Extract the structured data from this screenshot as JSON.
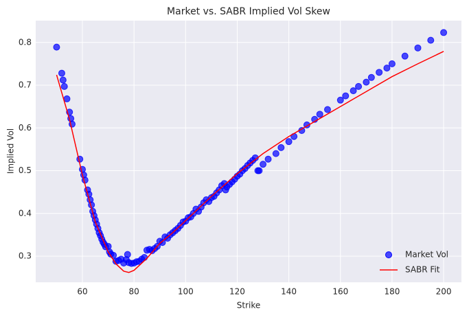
{
  "chart_data": {
    "type": "scatter",
    "title": "Market vs. SABR Implied Vol Skew",
    "x_label": "Strike",
    "y_label": "Implied Vol",
    "xlim": [
      41.9,
      206.9
    ],
    "ylim": [
      0.239,
      0.851
    ],
    "xticks": [
      60,
      80,
      100,
      120,
      140,
      160,
      180,
      200
    ],
    "yticks": [
      0.3,
      0.4,
      0.5,
      0.6,
      0.7,
      0.8
    ],
    "grid": true,
    "legend": "lower right",
    "series": [
      {
        "name": "Market Vol",
        "type": "scatter",
        "color": "#0000ff",
        "x": [
          50,
          52,
          52.5,
          53,
          54,
          55,
          55.5,
          56,
          59,
          60,
          60.5,
          61,
          62,
          62.5,
          63,
          63.5,
          64,
          64.5,
          65,
          65.5,
          66,
          66.5,
          67,
          67.5,
          68,
          68.5,
          69,
          70,
          70.5,
          71,
          72,
          73,
          74,
          75,
          76,
          77,
          77.5,
          78,
          79,
          80,
          81,
          82,
          83,
          84,
          85,
          86,
          87,
          88,
          89,
          90,
          91,
          92,
          93,
          94,
          95,
          96,
          97,
          98,
          99,
          100,
          101,
          102,
          103,
          104,
          105,
          106,
          107,
          108,
          109,
          110,
          111,
          112,
          113,
          114,
          115,
          115.5,
          116,
          117,
          118,
          119,
          120,
          121,
          122,
          123,
          124,
          125,
          126,
          127,
          128,
          128.5,
          130,
          132,
          135,
          137,
          140,
          142,
          145,
          147,
          150,
          152,
          155,
          160,
          162,
          165,
          167,
          170,
          172,
          175,
          178,
          180,
          185,
          190,
          195,
          200
        ],
        "values": [
          0.789,
          0.728,
          0.712,
          0.697,
          0.668,
          0.637,
          0.622,
          0.609,
          0.527,
          0.503,
          0.49,
          0.478,
          0.455,
          0.445,
          0.432,
          0.42,
          0.405,
          0.395,
          0.385,
          0.375,
          0.365,
          0.355,
          0.348,
          0.34,
          0.333,
          0.328,
          0.322,
          0.323,
          0.31,
          0.305,
          0.302,
          0.288,
          0.29,
          0.293,
          0.284,
          0.292,
          0.304,
          0.285,
          0.283,
          0.284,
          0.287,
          0.288,
          0.293,
          0.297,
          0.314,
          0.316,
          0.313,
          0.318,
          0.323,
          0.335,
          0.332,
          0.345,
          0.342,
          0.35,
          0.355,
          0.36,
          0.365,
          0.372,
          0.38,
          0.382,
          0.39,
          0.392,
          0.4,
          0.41,
          0.405,
          0.415,
          0.425,
          0.432,
          0.428,
          0.437,
          0.44,
          0.448,
          0.455,
          0.465,
          0.47,
          0.455,
          0.462,
          0.468,
          0.474,
          0.48,
          0.487,
          0.492,
          0.5,
          0.505,
          0.512,
          0.518,
          0.524,
          0.53,
          0.5,
          0.5,
          0.515,
          0.527,
          0.54,
          0.554,
          0.568,
          0.58,
          0.594,
          0.607,
          0.62,
          0.632,
          0.643,
          0.665,
          0.675,
          0.687,
          0.697,
          0.707,
          0.718,
          0.73,
          0.74,
          0.75,
          0.768,
          0.787,
          0.805,
          0.823
        ]
      },
      {
        "name": "SABR Fit",
        "type": "line",
        "color": "#ff0000",
        "x": [
          50,
          55,
          60,
          65,
          70,
          73,
          76,
          78,
          80,
          85,
          90,
          95,
          100,
          110,
          120,
          130,
          140,
          150,
          160,
          170,
          180,
          190,
          200
        ],
        "values": [
          0.724,
          0.62,
          0.49,
          0.38,
          0.31,
          0.282,
          0.265,
          0.262,
          0.267,
          0.295,
          0.33,
          0.355,
          0.383,
          0.44,
          0.493,
          0.54,
          0.58,
          0.615,
          0.65,
          0.685,
          0.72,
          0.75,
          0.779
        ]
      }
    ]
  }
}
